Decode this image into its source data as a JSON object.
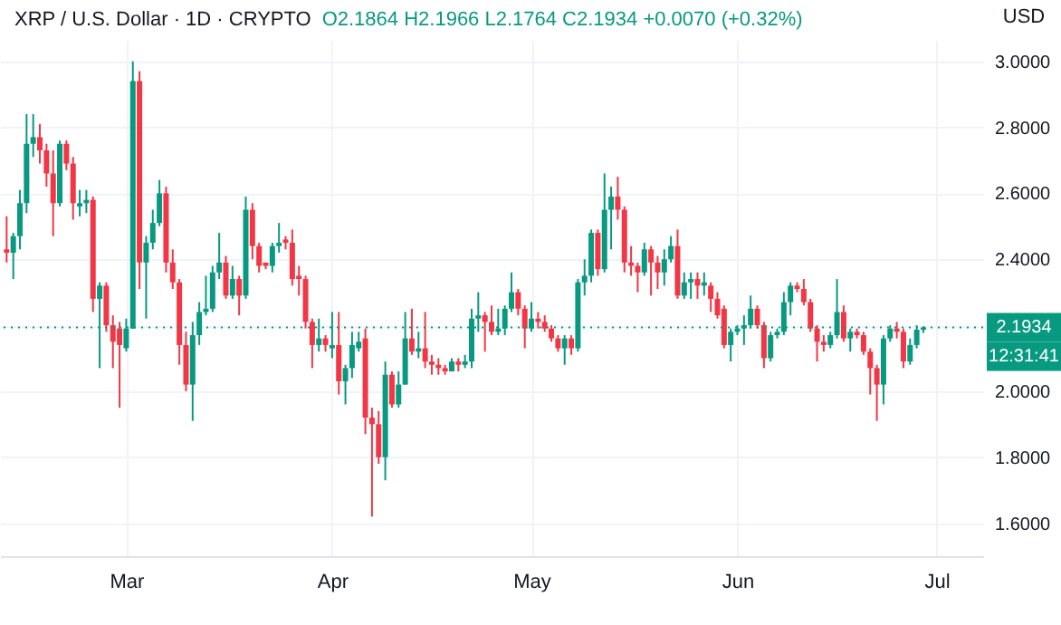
{
  "chart_data": {
    "type": "candlestick",
    "title": "XRP / U.S. Dollar · 1D · CRYPTO",
    "subtitle": "O2.1864 H2.1966 L2.1764 C2.1934 +0.0070 (+0.32%)",
    "ylabel": "USD",
    "x": [
      "--02-11",
      "--02-12",
      "--02-13",
      "--02-14",
      "--02-15",
      "--02-16",
      "--02-17",
      "--02-18",
      "--02-19",
      "--02-20",
      "--02-21",
      "--02-22",
      "--02-23",
      "--02-24",
      "--02-25",
      "--02-26",
      "--02-27",
      "--02-28",
      "--03-01",
      "--03-02",
      "--03-03",
      "--03-04",
      "--03-05",
      "--03-06",
      "--03-07",
      "--03-08",
      "--03-09",
      "--03-10",
      "--03-11",
      "--03-12",
      "--03-13",
      "--03-14",
      "--03-15",
      "--03-16",
      "--03-17",
      "--03-18",
      "--03-19",
      "--03-20",
      "--03-21",
      "--03-22",
      "--03-23",
      "--03-24",
      "--03-25",
      "--03-26",
      "--03-27",
      "--03-28",
      "--03-29",
      "--03-30",
      "--03-31",
      "--04-01",
      "--04-02",
      "--04-03",
      "--04-04",
      "--04-05",
      "--04-06",
      "--04-07",
      "--04-08",
      "--04-09",
      "--04-10",
      "--04-11",
      "--04-12",
      "--04-13",
      "--04-14",
      "--04-15",
      "--04-16",
      "--04-17",
      "--04-18",
      "--04-19",
      "--04-20",
      "--04-21",
      "--04-22",
      "--04-23",
      "--04-24",
      "--04-25",
      "--04-26",
      "--04-27",
      "--04-28",
      "--04-29",
      "--04-30",
      "--05-01",
      "--05-02",
      "--05-03",
      "--05-04",
      "--05-05",
      "--05-06",
      "--05-07",
      "--05-08",
      "--05-09",
      "--05-10",
      "--05-11",
      "--05-12",
      "--05-13",
      "--05-14",
      "--05-15",
      "--05-16",
      "--05-17",
      "--05-18",
      "--05-19",
      "--05-20",
      "--05-21",
      "--05-22",
      "--05-23",
      "--05-24",
      "--05-25",
      "--05-26",
      "--05-27",
      "--05-28",
      "--05-29",
      "--05-30",
      "--05-31",
      "--06-01",
      "--06-02",
      "--06-03",
      "--06-04",
      "--06-05",
      "--06-06",
      "--06-07",
      "--06-08",
      "--06-09",
      "--06-10",
      "--06-11",
      "--06-12",
      "--06-13",
      "--06-14",
      "--06-15",
      "--06-16",
      "--06-17",
      "--06-18",
      "--06-19",
      "--06-20",
      "--06-21",
      "--06-22",
      "--06-23",
      "--06-24",
      "--06-25",
      "--06-26",
      "--06-27",
      "--06-28",
      "--06-29"
    ],
    "ohlc": [
      [
        2.43,
        2.53,
        2.39,
        2.42
      ],
      [
        2.42,
        2.48,
        2.34,
        2.47
      ],
      [
        2.47,
        2.61,
        2.43,
        2.57
      ],
      [
        2.57,
        2.84,
        2.54,
        2.75
      ],
      [
        2.75,
        2.84,
        2.71,
        2.77
      ],
      [
        2.77,
        2.81,
        2.69,
        2.73
      ],
      [
        2.73,
        2.75,
        2.62,
        2.66
      ],
      [
        2.66,
        2.73,
        2.47,
        2.57
      ],
      [
        2.57,
        2.76,
        2.56,
        2.75
      ],
      [
        2.75,
        2.76,
        2.67,
        2.69
      ],
      [
        2.69,
        2.71,
        2.52,
        2.57
      ],
      [
        2.56,
        2.61,
        2.53,
        2.57
      ],
      [
        2.57,
        2.61,
        2.54,
        2.58
      ],
      [
        2.58,
        2.59,
        2.24,
        2.28
      ],
      [
        2.28,
        2.33,
        2.07,
        2.32
      ],
      [
        2.32,
        2.33,
        2.18,
        2.2
      ],
      [
        2.2,
        2.23,
        2.07,
        2.15
      ],
      [
        2.19,
        2.21,
        1.95,
        2.14
      ],
      [
        2.13,
        2.22,
        2.12,
        2.19
      ],
      [
        2.19,
        3.0,
        2.19,
        2.94
      ],
      [
        2.94,
        2.97,
        2.31,
        2.39
      ],
      [
        2.39,
        2.47,
        2.22,
        2.45
      ],
      [
        2.45,
        2.55,
        2.43,
        2.51
      ],
      [
        2.51,
        2.64,
        2.5,
        2.6
      ],
      [
        2.6,
        2.62,
        2.36,
        2.39
      ],
      [
        2.39,
        2.43,
        2.31,
        2.33
      ],
      [
        2.33,
        2.34,
        2.08,
        2.14
      ],
      [
        2.14,
        2.18,
        2.0,
        2.02
      ],
      [
        2.02,
        2.21,
        1.91,
        2.17
      ],
      [
        2.17,
        2.27,
        2.14,
        2.24
      ],
      [
        2.24,
        2.35,
        2.23,
        2.25
      ],
      [
        2.25,
        2.38,
        2.24,
        2.36
      ],
      [
        2.36,
        2.48,
        2.34,
        2.39
      ],
      [
        2.39,
        2.41,
        2.28,
        2.29
      ],
      [
        2.29,
        2.38,
        2.28,
        2.34
      ],
      [
        2.34,
        2.35,
        2.23,
        2.29
      ],
      [
        2.29,
        2.59,
        2.28,
        2.55
      ],
      [
        2.55,
        2.57,
        2.4,
        2.44
      ],
      [
        2.44,
        2.45,
        2.36,
        2.38
      ],
      [
        2.39,
        2.39,
        2.37,
        2.38
      ],
      [
        2.38,
        2.45,
        2.36,
        2.44
      ],
      [
        2.44,
        2.51,
        2.42,
        2.45
      ],
      [
        2.46,
        2.47,
        2.43,
        2.45
      ],
      [
        2.45,
        2.49,
        2.32,
        2.34
      ],
      [
        2.35,
        2.38,
        2.29,
        2.34
      ],
      [
        2.34,
        2.35,
        2.19,
        2.21
      ],
      [
        2.21,
        2.22,
        2.07,
        2.14
      ],
      [
        2.14,
        2.22,
        2.12,
        2.16
      ],
      [
        2.16,
        2.17,
        2.12,
        2.14
      ],
      [
        2.13,
        2.24,
        2.1,
        2.14
      ],
      [
        2.14,
        2.24,
        1.99,
        2.03
      ],
      [
        2.03,
        2.08,
        1.96,
        2.07
      ],
      [
        2.07,
        2.18,
        2.04,
        2.14
      ],
      [
        2.13,
        2.18,
        2.12,
        2.15
      ],
      [
        2.16,
        2.19,
        1.87,
        1.92
      ],
      [
        1.92,
        1.95,
        1.62,
        1.9
      ],
      [
        1.9,
        1.94,
        1.78,
        1.8
      ],
      [
        1.8,
        2.09,
        1.73,
        2.05
      ],
      [
        2.05,
        2.06,
        1.95,
        1.96
      ],
      [
        1.96,
        2.06,
        1.95,
        2.02
      ],
      [
        2.02,
        2.24,
        2.02,
        2.16
      ],
      [
        2.16,
        2.25,
        2.11,
        2.12
      ],
      [
        2.12,
        2.18,
        2.1,
        2.13
      ],
      [
        2.13,
        2.24,
        2.07,
        2.09
      ],
      [
        2.09,
        2.11,
        2.05,
        2.08
      ],
      [
        2.08,
        2.1,
        2.05,
        2.07
      ],
      [
        2.07,
        2.08,
        2.05,
        2.06
      ],
      [
        2.06,
        2.1,
        2.06,
        2.09
      ],
      [
        2.09,
        2.1,
        2.06,
        2.08
      ],
      [
        2.08,
        2.11,
        2.07,
        2.09
      ],
      [
        2.09,
        2.25,
        2.07,
        2.22
      ],
      [
        2.22,
        2.3,
        2.18,
        2.23
      ],
      [
        2.23,
        2.24,
        2.12,
        2.21
      ],
      [
        2.21,
        2.26,
        2.17,
        2.18
      ],
      [
        2.18,
        2.25,
        2.17,
        2.19
      ],
      [
        2.19,
        2.26,
        2.17,
        2.25
      ],
      [
        2.25,
        2.36,
        2.24,
        2.3
      ],
      [
        2.3,
        2.31,
        2.23,
        2.25
      ],
      [
        2.25,
        2.26,
        2.13,
        2.19
      ],
      [
        2.19,
        2.27,
        2.18,
        2.22
      ],
      [
        2.22,
        2.24,
        2.19,
        2.21
      ],
      [
        2.21,
        2.23,
        2.18,
        2.19
      ],
      [
        2.19,
        2.2,
        2.15,
        2.16
      ],
      [
        2.16,
        2.17,
        2.12,
        2.13
      ],
      [
        2.13,
        2.17,
        2.08,
        2.16
      ],
      [
        2.16,
        2.17,
        2.11,
        2.13
      ],
      [
        2.13,
        2.34,
        2.12,
        2.33
      ],
      [
        2.33,
        2.4,
        2.29,
        2.35
      ],
      [
        2.35,
        2.49,
        2.33,
        2.48
      ],
      [
        2.48,
        2.49,
        2.35,
        2.37
      ],
      [
        2.37,
        2.66,
        2.36,
        2.55
      ],
      [
        2.55,
        2.62,
        2.43,
        2.59
      ],
      [
        2.59,
        2.65,
        2.52,
        2.55
      ],
      [
        2.55,
        2.56,
        2.36,
        2.39
      ],
      [
        2.39,
        2.44,
        2.35,
        2.38
      ],
      [
        2.38,
        2.39,
        2.3,
        2.36
      ],
      [
        2.36,
        2.45,
        2.35,
        2.43
      ],
      [
        2.43,
        2.44,
        2.29,
        2.39
      ],
      [
        2.39,
        2.41,
        2.31,
        2.36
      ],
      [
        2.36,
        2.43,
        2.32,
        2.4
      ],
      [
        2.4,
        2.47,
        2.39,
        2.44
      ],
      [
        2.44,
        2.49,
        2.28,
        2.29
      ],
      [
        2.29,
        2.36,
        2.28,
        2.33
      ],
      [
        2.33,
        2.36,
        2.28,
        2.34
      ],
      [
        2.34,
        2.36,
        2.28,
        2.32
      ],
      [
        2.32,
        2.36,
        2.29,
        2.33
      ],
      [
        2.32,
        2.33,
        2.24,
        2.28
      ],
      [
        2.28,
        2.3,
        2.22,
        2.23
      ],
      [
        2.25,
        2.26,
        2.13,
        2.14
      ],
      [
        2.14,
        2.19,
        2.09,
        2.18
      ],
      [
        2.18,
        2.2,
        2.17,
        2.19
      ],
      [
        2.19,
        2.23,
        2.14,
        2.2
      ],
      [
        2.2,
        2.29,
        2.19,
        2.25
      ],
      [
        2.25,
        2.26,
        2.19,
        2.2
      ],
      [
        2.2,
        2.21,
        2.07,
        2.1
      ],
      [
        2.1,
        2.18,
        2.09,
        2.17
      ],
      [
        2.17,
        2.19,
        2.16,
        2.18
      ],
      [
        2.18,
        2.3,
        2.17,
        2.27
      ],
      [
        2.27,
        2.33,
        2.23,
        2.32
      ],
      [
        2.32,
        2.33,
        2.3,
        2.31
      ],
      [
        2.31,
        2.34,
        2.26,
        2.27
      ],
      [
        2.27,
        2.28,
        2.18,
        2.19
      ],
      [
        2.19,
        2.2,
        2.09,
        2.15
      ],
      [
        2.15,
        2.17,
        2.12,
        2.14
      ],
      [
        2.14,
        2.18,
        2.13,
        2.17
      ],
      [
        2.17,
        2.34,
        2.16,
        2.24
      ],
      [
        2.24,
        2.26,
        2.15,
        2.16
      ],
      [
        2.16,
        2.19,
        2.12,
        2.18
      ],
      [
        2.18,
        2.19,
        2.16,
        2.17
      ],
      [
        2.17,
        2.18,
        2.11,
        2.12
      ],
      [
        2.12,
        2.13,
        1.99,
        2.07
      ],
      [
        2.07,
        2.08,
        1.91,
        2.02
      ],
      [
        2.02,
        2.17,
        1.96,
        2.16
      ],
      [
        2.16,
        2.2,
        2.15,
        2.19
      ],
      [
        2.19,
        2.21,
        2.16,
        2.18
      ],
      [
        2.18,
        2.19,
        2.07,
        2.09
      ],
      [
        2.09,
        2.16,
        2.08,
        2.14
      ],
      [
        2.14,
        2.2,
        2.13,
        2.1864
      ],
      [
        2.1864,
        2.1966,
        2.1764,
        2.1934
      ]
    ],
    "colors": [
      "#f23645",
      "#089981",
      "#089981",
      "#089981",
      "#089981",
      "#f23645",
      "#f23645",
      "#f23645",
      "#089981",
      "#f23645",
      "#f23645",
      "#089981",
      "#089981",
      "#f23645",
      "#089981",
      "#f23645",
      "#f23645",
      "#f23645",
      "#089981",
      "#089981",
      "#f23645",
      "#089981",
      "#089981",
      "#089981",
      "#f23645",
      "#f23645",
      "#f23645",
      "#f23645",
      "#089981",
      "#089981",
      "#089981",
      "#089981",
      "#089981",
      "#f23645",
      "#089981",
      "#f23645",
      "#089981",
      "#f23645",
      "#f23645",
      "#f23645",
      "#089981",
      "#089981",
      "#f23645",
      "#f23645",
      "#f23645",
      "#f23645",
      "#f23645",
      "#089981",
      "#f23645",
      "#089981",
      "#f23645",
      "#089981",
      "#089981",
      "#089981",
      "#f23645",
      "#f23645",
      "#f23645",
      "#089981",
      "#f23645",
      "#089981",
      "#089981",
      "#f23645",
      "#089981",
      "#f23645",
      "#f23645",
      "#f23645",
      "#f23645",
      "#089981",
      "#f23645",
      "#089981",
      "#089981",
      "#089981",
      "#f23645",
      "#f23645",
      "#089981",
      "#089981",
      "#089981",
      "#f23645",
      "#f23645",
      "#089981",
      "#f23645",
      "#f23645",
      "#f23645",
      "#f23645",
      "#089981",
      "#f23645",
      "#089981",
      "#089981",
      "#089981",
      "#f23645",
      "#089981",
      "#089981",
      "#f23645",
      "#f23645",
      "#f23645",
      "#f23645",
      "#089981",
      "#f23645",
      "#f23645",
      "#089981",
      "#089981",
      "#f23645",
      "#089981",
      "#089981",
      "#f23645",
      "#089981",
      "#f23645",
      "#f23645",
      "#f23645",
      "#089981",
      "#089981",
      "#089981",
      "#089981",
      "#f23645",
      "#f23645",
      "#089981",
      "#089981",
      "#089981",
      "#089981",
      "#f23645",
      "#f23645",
      "#f23645",
      "#f23645",
      "#f23645",
      "#089981",
      "#089981",
      "#f23645",
      "#089981",
      "#f23645",
      "#f23645",
      "#f23645",
      "#f23645",
      "#089981",
      "#089981",
      "#f23645",
      "#f23645",
      "#089981",
      "#089981",
      "#089981"
    ],
    "xlim": [
      "--02-10",
      "--07-08"
    ],
    "xticks": [
      {
        "value": "--03-01",
        "label": "Mar"
      },
      {
        "value": "--04-01",
        "label": "Apr"
      },
      {
        "value": "--05-01",
        "label": "May"
      },
      {
        "value": "--06-01",
        "label": "Jun"
      },
      {
        "value": "--07-01",
        "label": "Jul"
      }
    ],
    "ylim": [
      1.5,
      3.065
    ],
    "yticks": [
      {
        "value": 1.6,
        "label": "1.6000"
      },
      {
        "value": 1.8,
        "label": "1.8000"
      },
      {
        "value": 2.0,
        "label": "2.0000"
      },
      {
        "value": 2.2,
        "label": null
      },
      {
        "value": 2.4,
        "label": "2.4000"
      },
      {
        "value": 2.6,
        "label": "2.6000"
      },
      {
        "value": 2.8,
        "label": "2.8000"
      },
      {
        "value": 3.0,
        "label": "3.0000"
      }
    ],
    "ref_lines": [
      {
        "axis": "y",
        "value": 2.1934,
        "label": "2.1934",
        "color": "#089981",
        "line_style": "dotted"
      }
    ],
    "annotations": [
      "12:31:41"
    ],
    "grid": true
  }
}
